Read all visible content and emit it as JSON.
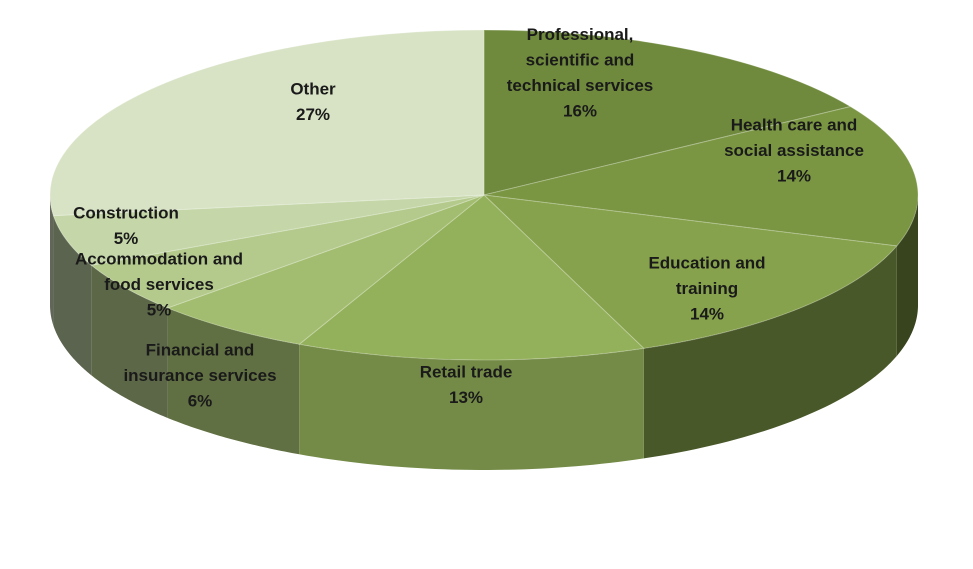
{
  "chart_data": {
    "type": "pie",
    "style": "3d",
    "title": "",
    "slices": [
      {
        "label": [
          "Professional,",
          "scientific and",
          "technical services"
        ],
        "percent_label": "16%",
        "value": 16,
        "color": "#6f8a3d"
      },
      {
        "label": [
          "Health care and",
          "social assistance"
        ],
        "percent_label": "14%",
        "value": 14,
        "color": "#7a9643"
      },
      {
        "label": [
          "Education and",
          "training"
        ],
        "percent_label": "14%",
        "value": 14,
        "color": "#86a24c"
      },
      {
        "label": [
          "Retail trade"
        ],
        "percent_label": "13%",
        "value": 13,
        "color": "#93b05a"
      },
      {
        "label": [
          "Financial and",
          "insurance services"
        ],
        "percent_label": "6%",
        "value": 6,
        "color": "#a2bd6f"
      },
      {
        "label": [
          "Accommodation and",
          "food services"
        ],
        "percent_label": "5%",
        "value": 5,
        "color": "#b4ca8d"
      },
      {
        "label": [
          "Construction"
        ],
        "percent_label": "5%",
        "value": 5,
        "color": "#c5d7a8"
      },
      {
        "label": [
          "Other"
        ],
        "percent_label": "27%",
        "value": 27,
        "color": "#d8e3c5"
      }
    ]
  }
}
